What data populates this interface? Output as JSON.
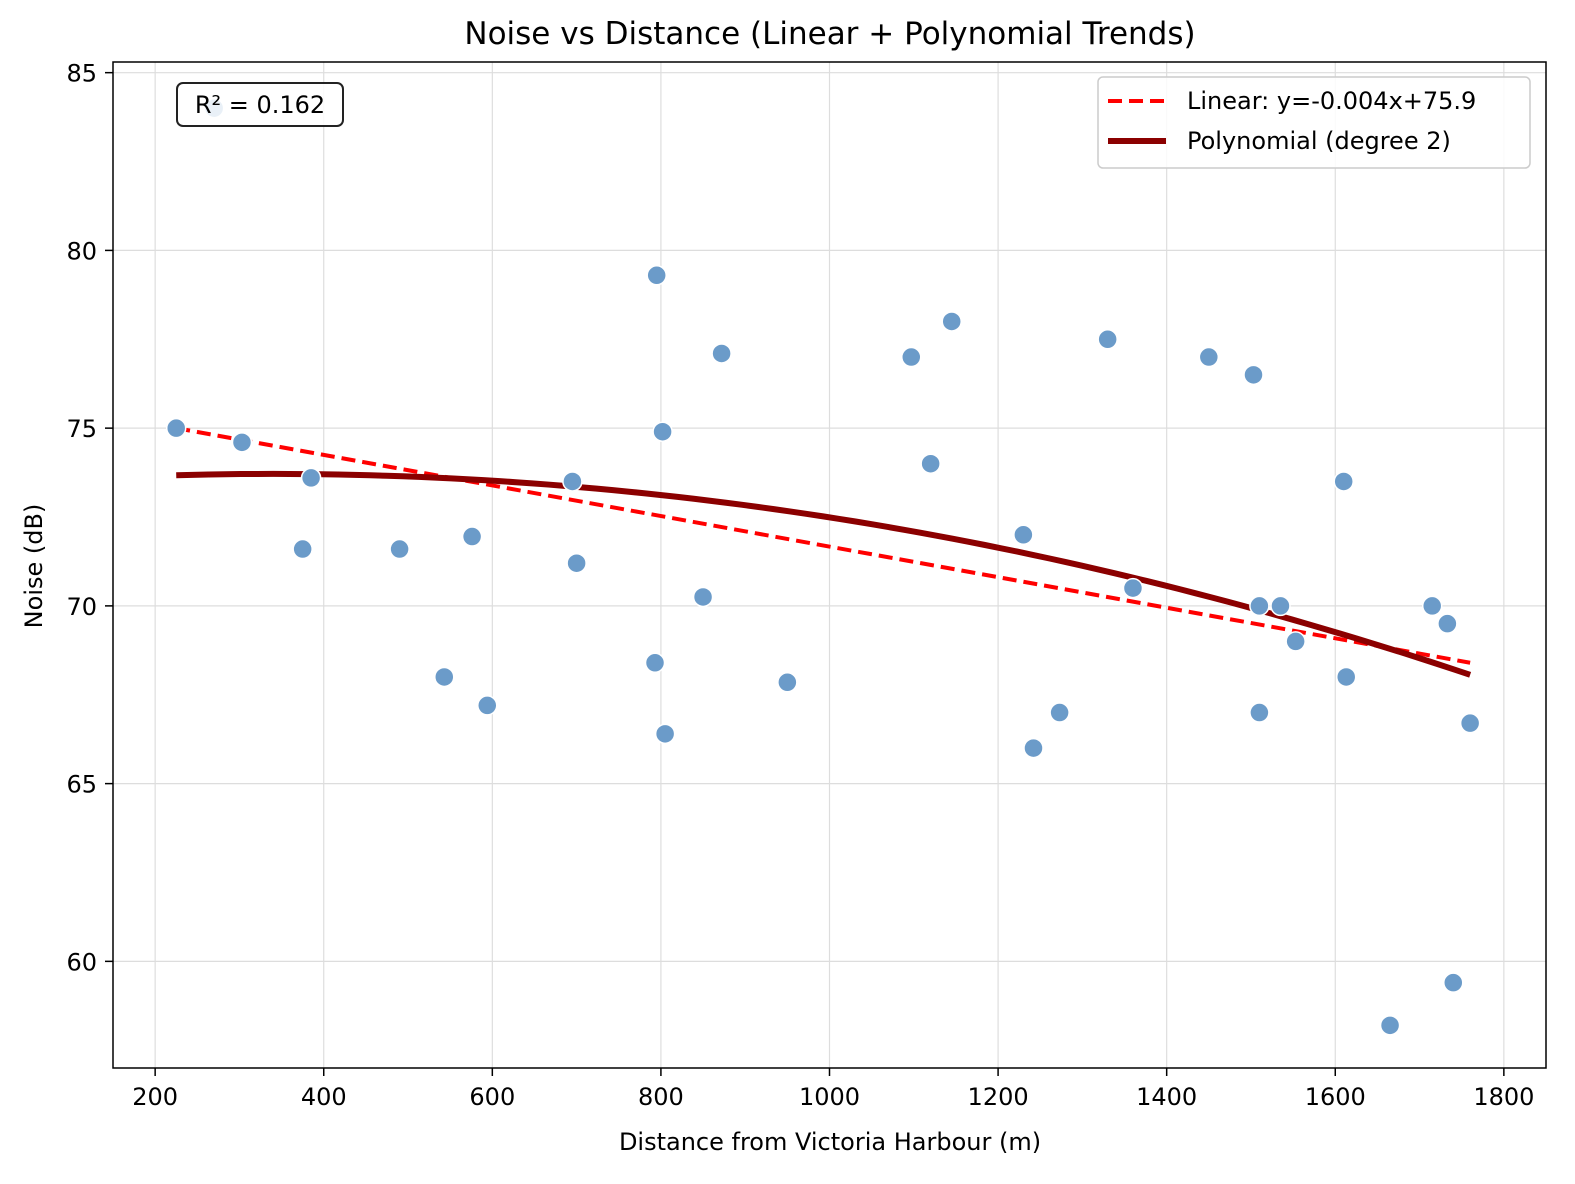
{
  "chart_data": {
    "type": "scatter",
    "title": "Noise vs Distance (Linear + Polynomial Trends)",
    "xlabel": "Distance from Victoria Harbour (m)",
    "ylabel": "Noise (dB)",
    "xlim": [
      150,
      1850
    ],
    "ylim": [
      57,
      85.3
    ],
    "xticks": [
      200,
      400,
      600,
      800,
      1000,
      1200,
      1400,
      1600,
      1800
    ],
    "yticks": [
      60,
      65,
      70,
      75,
      80,
      85
    ],
    "grid": true,
    "legend_position": "top-right",
    "annotation": "R² = 0.162",
    "points": [
      {
        "x": 225,
        "y": 75.0
      },
      {
        "x": 270,
        "y": 84.0
      },
      {
        "x": 303,
        "y": 74.6
      },
      {
        "x": 375,
        "y": 71.6
      },
      {
        "x": 385,
        "y": 73.6
      },
      {
        "x": 490,
        "y": 71.6
      },
      {
        "x": 543,
        "y": 68.0
      },
      {
        "x": 576,
        "y": 71.95
      },
      {
        "x": 594,
        "y": 67.2
      },
      {
        "x": 695,
        "y": 73.5
      },
      {
        "x": 700,
        "y": 71.2
      },
      {
        "x": 793,
        "y": 68.4
      },
      {
        "x": 795,
        "y": 79.3
      },
      {
        "x": 802,
        "y": 74.9
      },
      {
        "x": 805,
        "y": 66.4
      },
      {
        "x": 850,
        "y": 70.25
      },
      {
        "x": 872,
        "y": 77.1
      },
      {
        "x": 950,
        "y": 67.85
      },
      {
        "x": 1097,
        "y": 77.0
      },
      {
        "x": 1120,
        "y": 74.0
      },
      {
        "x": 1145,
        "y": 78.0
      },
      {
        "x": 1230,
        "y": 72.0
      },
      {
        "x": 1242,
        "y": 66.0
      },
      {
        "x": 1273,
        "y": 67.0
      },
      {
        "x": 1330,
        "y": 77.5
      },
      {
        "x": 1360,
        "y": 70.5
      },
      {
        "x": 1450,
        "y": 77.0
      },
      {
        "x": 1503,
        "y": 76.5
      },
      {
        "x": 1510,
        "y": 70.0
      },
      {
        "x": 1510,
        "y": 67.0
      },
      {
        "x": 1535,
        "y": 70.0
      },
      {
        "x": 1553,
        "y": 69.0
      },
      {
        "x": 1610,
        "y": 73.5
      },
      {
        "x": 1613,
        "y": 68.0
      },
      {
        "x": 1665,
        "y": 58.2
      },
      {
        "x": 1715,
        "y": 70.0
      },
      {
        "x": 1733,
        "y": 69.5
      },
      {
        "x": 1740,
        "y": 59.4
      },
      {
        "x": 1760,
        "y": 66.7
      }
    ],
    "series": [
      {
        "name": "Linear: y=-0.004x+75.9",
        "kind": "linear",
        "x": [
          225,
          1760
        ],
        "y": [
          75.0,
          68.4
        ],
        "color": "#ff0000",
        "style": "dashed"
      },
      {
        "name": "Polynomial (degree 2)",
        "kind": "polynomial",
        "x_range": [
          225,
          1760
        ],
        "coefficients": [
          -2.8e-06,
          0.0019,
          73.39
        ],
        "color": "#8b0000",
        "style": "solid"
      }
    ],
    "colors": {
      "points": "#6b9bc9",
      "grid": "#dddddd",
      "axes": "#000000"
    }
  }
}
